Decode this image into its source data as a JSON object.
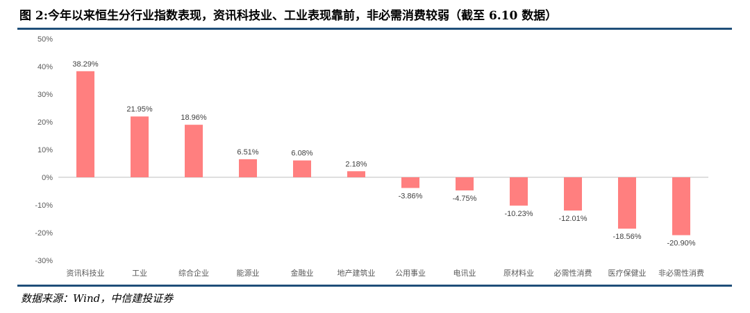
{
  "header": {
    "title": "图 2:今年以来恒生分行业指数表现，资讯科技业、工业表现靠前，非必需消费较弱（截至 6.10 数据）"
  },
  "footer": {
    "source": "数据来源：Wind，中信建投证券"
  },
  "colors": {
    "bar": "#ff7f7f",
    "rule": "#1f4e79",
    "axis": "#bfbfbf",
    "text": "#595959"
  },
  "chart_data": {
    "type": "bar",
    "categories": [
      "资讯科技业",
      "工业",
      "综合企业",
      "能源业",
      "金融业",
      "地产建筑业",
      "公用事业",
      "电讯业",
      "原材料业",
      "必需性消费",
      "医疗保健业",
      "非必需性消费"
    ],
    "values": [
      38.29,
      21.95,
      18.96,
      6.51,
      6.08,
      2.18,
      -3.86,
      -4.75,
      -10.23,
      -12.01,
      -18.56,
      -20.9
    ],
    "value_labels": [
      "38.29%",
      "21.95%",
      "18.96%",
      "6.51%",
      "6.08%",
      "2.18%",
      "-3.86%",
      "-4.75%",
      "-10.23%",
      "-12.01%",
      "-18.56%",
      "-20.90%"
    ],
    "y_ticks": [
      "50%",
      "40%",
      "30%",
      "20%",
      "10%",
      "0%",
      "-10%",
      "-20%",
      "-30%"
    ],
    "ylim": [
      -30,
      50
    ],
    "title": "",
    "xlabel": "",
    "ylabel": "",
    "grid": false,
    "legend": "none"
  }
}
